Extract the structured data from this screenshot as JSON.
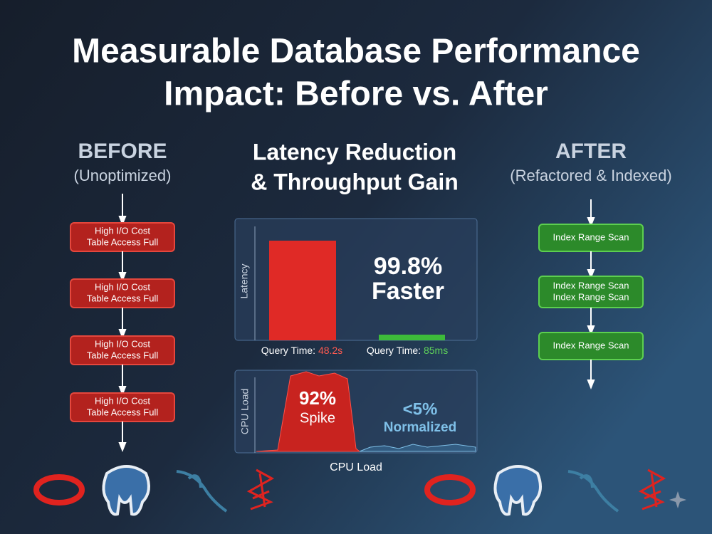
{
  "header": {
    "title_line1": "Measurable Database Performance",
    "title_line2": "Impact: Before vs. After"
  },
  "before": {
    "heading": "BEFORE",
    "subheading": "(Unoptimized)",
    "steps": [
      [
        "High I/O Cost",
        "Table Access Full"
      ],
      [
        "High I/O Cost",
        "Table Access Full"
      ],
      [
        "High I/O Cost",
        "Table Access Full"
      ],
      [
        "High I/O Cost",
        "Table Access Full"
      ]
    ]
  },
  "center": {
    "heading": [
      "Latency Reduction",
      "& Throughput Gain"
    ]
  },
  "latency": {
    "axis_label": "Latency",
    "headline": "99.8%",
    "subline": "Faster",
    "before_label": "Query Time:",
    "before_value": "48.2s",
    "after_label": "Query Time:",
    "after_value": "85ms"
  },
  "cpu": {
    "axis_label": "CPU Load",
    "spike_value": "92%",
    "spike_label": "Spike",
    "normal_value": "<5%",
    "normal_label": "Normalized",
    "caption": "CPU Load"
  },
  "after": {
    "heading": "AFTER",
    "subheading": "(Refactored & Indexed)",
    "steps": [
      [
        "Index Range Scan"
      ],
      [
        "Index Range Scan",
        "Index Range Scan"
      ],
      [
        "Index Range Scan"
      ]
    ]
  }
}
